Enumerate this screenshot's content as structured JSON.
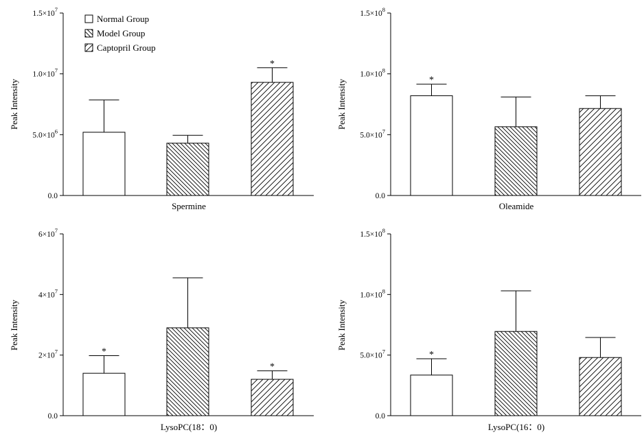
{
  "chart_data": [
    {
      "type": "bar",
      "xlabel": "Spermine",
      "ylabel": "Peak Intensity",
      "ylim": [
        0,
        15000000
      ],
      "yticks": [
        {
          "value": 0,
          "label": "0.0",
          "exp": ""
        },
        {
          "value": 5000000,
          "label": "5.0×10",
          "exp": "6"
        },
        {
          "value": 10000000,
          "label": "1.0×10",
          "exp": "7"
        },
        {
          "value": 15000000,
          "label": "1.5×10",
          "exp": "7"
        }
      ],
      "categories": [
        "Normal Group",
        "Model Group",
        "Captopril Group"
      ],
      "values": [
        5200000,
        4300000,
        9300000
      ],
      "errors": [
        2650000,
        650000,
        1200000
      ],
      "significant": [
        false,
        false,
        true
      ],
      "marker": "*"
    },
    {
      "type": "bar",
      "xlabel": "Oleamide",
      "ylabel": "Peak Intensity",
      "ylim": [
        0,
        150000000
      ],
      "yticks": [
        {
          "value": 0,
          "label": "0.0",
          "exp": ""
        },
        {
          "value": 50000000,
          "label": "5.0×10",
          "exp": "7"
        },
        {
          "value": 100000000,
          "label": "1.0×10",
          "exp": "8"
        },
        {
          "value": 150000000,
          "label": "1.5×10",
          "exp": "8"
        }
      ],
      "categories": [
        "Normal Group",
        "Model Group",
        "Captopril Group"
      ],
      "values": [
        82000000,
        56500000,
        71500000
      ],
      "errors": [
        9500000,
        24500000,
        10500000
      ],
      "significant": [
        true,
        false,
        false
      ],
      "marker": "*"
    },
    {
      "type": "bar",
      "xlabel": "LysoPC(18：0)",
      "ylabel": "Peak Intensity",
      "ylim": [
        0,
        60000000
      ],
      "yticks": [
        {
          "value": 0,
          "label": "0.0",
          "exp": ""
        },
        {
          "value": 20000000,
          "label": "2×10",
          "exp": "7"
        },
        {
          "value": 40000000,
          "label": "4×10",
          "exp": "7"
        },
        {
          "value": 60000000,
          "label": "6×10",
          "exp": "7"
        }
      ],
      "categories": [
        "Normal Group",
        "Model Group",
        "Captopril Group"
      ],
      "values": [
        14000000,
        29000000,
        12000000
      ],
      "errors": [
        5800000,
        16500000,
        2800000
      ],
      "significant": [
        true,
        false,
        true
      ],
      "marker": "*"
    },
    {
      "type": "bar",
      "xlabel": "LysoPC(16：0)",
      "ylabel": "Peak Intensity",
      "ylim": [
        0,
        150000000
      ],
      "yticks": [
        {
          "value": 0,
          "label": "0.0",
          "exp": ""
        },
        {
          "value": 50000000,
          "label": "5.0×10",
          "exp": "7"
        },
        {
          "value": 100000000,
          "label": "1.0×10",
          "exp": "8"
        },
        {
          "value": 150000000,
          "label": "1.5×10",
          "exp": "8"
        }
      ],
      "categories": [
        "Normal Group",
        "Model Group",
        "Captopril Group"
      ],
      "values": [
        33500000,
        69500000,
        48000000
      ],
      "errors": [
        13500000,
        33500000,
        16500000
      ],
      "significant": [
        true,
        false,
        false
      ],
      "marker": "*"
    }
  ],
  "legend": {
    "placement": "top-left of first panel",
    "items": [
      {
        "label": "Normal Group",
        "pattern": "none"
      },
      {
        "label": "Model Group",
        "pattern": "dense-diagonal"
      },
      {
        "label": "Captopril Group",
        "pattern": "wide-diagonal"
      }
    ]
  }
}
